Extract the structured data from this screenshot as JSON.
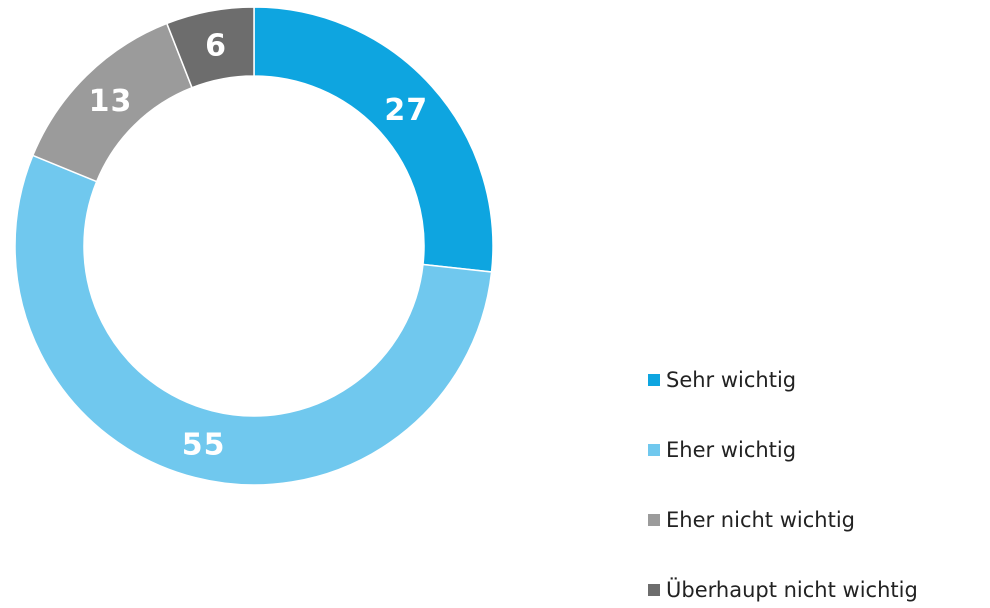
{
  "chart_data": {
    "type": "donut",
    "categories": [
      "Sehr wichtig",
      "Eher wichtig",
      "Eher nicht wichtig",
      "Überhaupt nicht wichtig"
    ],
    "values": [
      27,
      55,
      13,
      6
    ],
    "colors": [
      "#0ea5e0",
      "#70c8ee",
      "#9b9b9b",
      "#6d6d6d"
    ],
    "legend": "right"
  }
}
